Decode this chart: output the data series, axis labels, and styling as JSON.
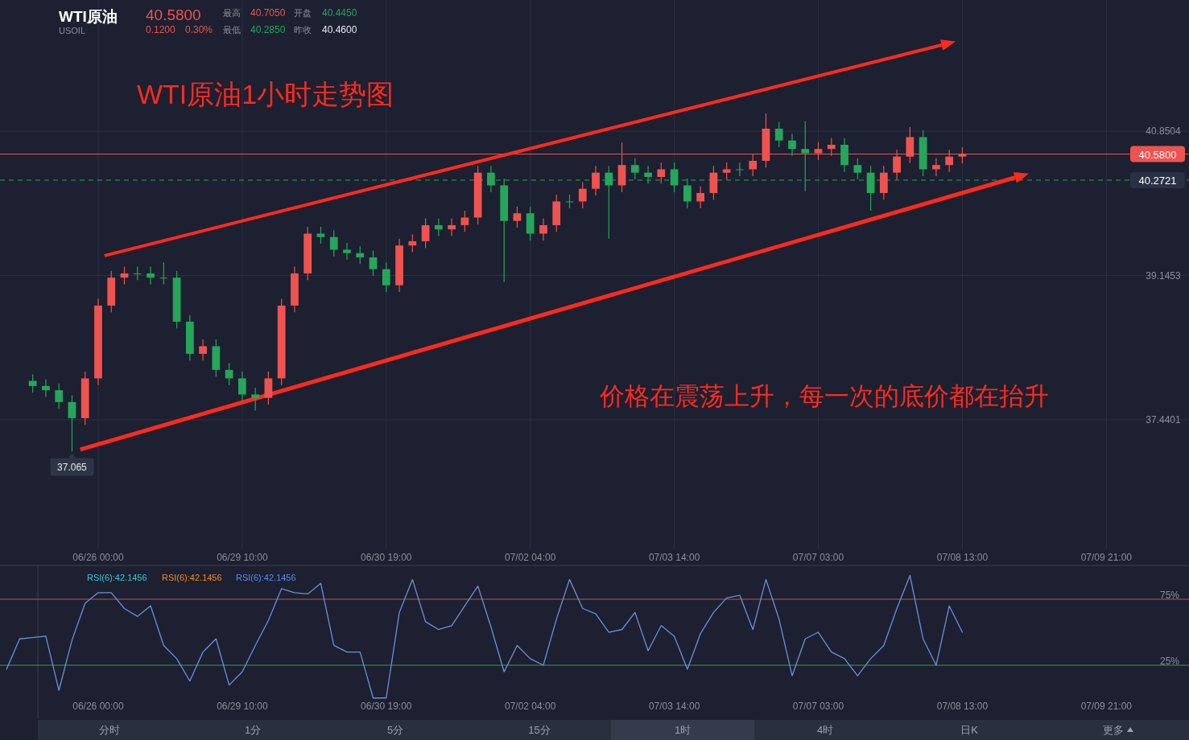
{
  "chart_data": [
    {
      "type": "candlestick",
      "title": "WTI原油",
      "subtitle": "USOIL",
      "categories": [
        null,
        null,
        null,
        null,
        null,
        null,
        null,
        "06/26 00:00",
        null,
        null,
        null,
        null,
        null,
        null,
        null,
        null,
        null,
        null,
        "06/29 10:00",
        null,
        null,
        null,
        null,
        null,
        null,
        null,
        null,
        null,
        null,
        "06/30 19:00",
        null,
        null,
        null,
        null,
        null,
        null,
        null,
        null,
        null,
        null,
        "07/02 04:00",
        null,
        null,
        null,
        null,
        null,
        null,
        null,
        null,
        null,
        null,
        "07/03 14:00",
        null,
        null,
        null,
        null,
        null,
        null,
        null,
        null,
        null,
        null,
        "07/07 03:00",
        null,
        null,
        null,
        null,
        null,
        null,
        null,
        null,
        null,
        null,
        "07/08 13:00",
        null,
        null,
        null,
        null,
        null,
        null,
        null,
        null,
        null,
        null,
        "07/09 21:00",
        null,
        null
      ],
      "ohlc": [
        null,
        null,
        [
          37.9,
          37.98,
          37.76,
          37.84
        ],
        [
          37.84,
          37.92,
          37.71,
          37.79
        ],
        [
          37.79,
          37.87,
          37.57,
          37.65
        ],
        [
          37.65,
          37.73,
          37.065,
          37.46
        ],
        [
          37.46,
          38.01,
          37.38,
          37.93
        ],
        [
          37.93,
          38.87,
          37.85,
          38.79
        ],
        [
          38.79,
          39.2,
          38.71,
          39.12
        ],
        [
          39.12,
          39.25,
          39.04,
          39.17
        ],
        [
          39.17,
          39.25,
          39.09,
          39.17
        ],
        [
          39.17,
          39.25,
          39.04,
          39.12
        ],
        [
          39.12,
          39.3,
          39.04,
          39.12
        ],
        [
          39.12,
          39.2,
          38.52,
          38.6
        ],
        [
          38.6,
          38.68,
          38.14,
          38.22
        ],
        [
          38.22,
          38.39,
          38.14,
          38.31
        ],
        [
          38.31,
          38.39,
          37.95,
          38.03
        ],
        [
          38.03,
          38.11,
          37.85,
          37.93
        ],
        [
          37.93,
          38.01,
          37.66,
          37.74
        ],
        [
          37.74,
          37.82,
          37.55,
          37.7
        ],
        [
          37.7,
          38.01,
          37.62,
          37.93
        ],
        [
          37.93,
          38.87,
          37.85,
          38.79
        ],
        [
          38.79,
          39.25,
          38.71,
          39.17
        ],
        [
          39.17,
          39.72,
          39.09,
          39.64
        ],
        [
          39.64,
          39.72,
          39.52,
          39.6
        ],
        [
          39.6,
          39.68,
          39.37,
          39.45
        ],
        [
          39.45,
          39.53,
          39.33,
          39.41
        ],
        [
          39.41,
          39.49,
          39.28,
          39.36
        ],
        [
          39.36,
          39.44,
          39.14,
          39.22
        ],
        [
          39.22,
          39.3,
          38.95,
          39.03
        ],
        [
          39.03,
          39.58,
          38.95,
          39.5
        ],
        [
          39.5,
          39.63,
          39.42,
          39.55
        ],
        [
          39.55,
          39.82,
          39.47,
          39.74
        ],
        [
          39.74,
          39.82,
          39.61,
          39.69
        ],
        [
          39.69,
          39.82,
          39.61,
          39.74
        ],
        [
          39.74,
          39.91,
          39.66,
          39.83
        ],
        [
          39.83,
          40.44,
          39.75,
          40.36
        ],
        [
          40.36,
          40.44,
          40.13,
          40.21
        ],
        [
          40.21,
          40.29,
          39.07,
          39.79
        ],
        [
          39.79,
          39.96,
          39.71,
          39.88
        ],
        [
          39.88,
          39.96,
          39.56,
          39.64
        ],
        [
          39.64,
          39.82,
          39.56,
          39.74
        ],
        [
          39.74,
          40.1,
          39.66,
          40.02
        ],
        [
          40.02,
          40.1,
          39.94,
          40.02
        ],
        [
          40.02,
          40.25,
          39.94,
          40.17
        ],
        [
          40.17,
          40.44,
          40.09,
          40.36
        ],
        [
          40.36,
          40.44,
          39.58,
          40.21
        ],
        [
          40.21,
          40.72,
          40.13,
          40.45
        ],
        [
          40.45,
          40.53,
          40.28,
          40.36
        ],
        [
          40.36,
          40.44,
          40.23,
          40.31
        ],
        [
          40.31,
          40.48,
          40.23,
          40.4
        ],
        [
          40.4,
          40.48,
          40.13,
          40.21
        ],
        [
          40.21,
          40.29,
          39.94,
          40.02
        ],
        [
          40.02,
          40.2,
          39.94,
          40.12
        ],
        [
          40.12,
          40.44,
          40.04,
          40.36
        ],
        [
          40.36,
          40.48,
          40.28,
          40.4
        ],
        [
          40.4,
          40.48,
          40.32,
          40.4
        ],
        [
          40.4,
          40.58,
          40.32,
          40.5
        ],
        [
          40.5,
          41.06,
          40.42,
          40.88
        ],
        [
          40.88,
          40.96,
          40.66,
          40.74
        ],
        [
          40.74,
          40.82,
          40.56,
          40.64
        ],
        [
          40.64,
          40.97,
          40.14,
          40.59
        ],
        [
          40.59,
          40.72,
          40.51,
          40.64
        ],
        [
          40.64,
          40.77,
          40.56,
          40.69
        ],
        [
          40.69,
          40.77,
          40.37,
          40.45
        ],
        [
          40.45,
          40.53,
          40.28,
          40.36
        ],
        [
          40.36,
          40.44,
          39.91,
          40.12
        ],
        [
          40.12,
          40.44,
          40.04,
          40.36
        ],
        [
          40.36,
          40.63,
          40.28,
          40.55
        ],
        [
          40.55,
          40.9,
          40.47,
          40.78
        ],
        [
          40.78,
          40.86,
          40.32,
          40.4
        ],
        [
          40.4,
          40.53,
          40.32,
          40.45
        ],
        [
          40.45,
          40.63,
          40.37,
          40.55
        ],
        [
          40.55,
          40.66,
          40.47,
          40.58
        ],
        null,
        null,
        null,
        null,
        null,
        null,
        null,
        null,
        null,
        null,
        null,
        null,
        null
      ],
      "colors": [
        null,
        null,
        "#26a65b",
        "#26a65b",
        "#26a65b",
        "#26a65b",
        "#ef5350",
        "#ef5350",
        "#ef5350",
        "#ef5350",
        "#26a65b",
        "#26a65b",
        "#26a65b",
        "#26a65b",
        "#26a65b",
        "#ef5350",
        "#26a65b",
        "#26a65b",
        "#26a65b",
        "#26a65b",
        "#ef5350",
        "#ef5350",
        "#ef5350",
        "#ef5350",
        "#26a65b",
        "#26a65b",
        "#26a65b",
        "#26a65b",
        "#26a65b",
        "#26a65b",
        "#ef5350",
        "#ef5350",
        "#ef5350",
        "#26a65b",
        "#ef5350",
        "#ef5350",
        "#ef5350",
        "#26a65b",
        "#26a65b",
        "#ef5350",
        "#26a65b",
        "#ef5350",
        "#ef5350",
        "#26a65b",
        "#ef5350",
        "#ef5350",
        "#26a65b",
        "#ef5350",
        "#26a65b",
        "#26a65b",
        "#ef5350",
        "#26a65b",
        "#26a65b",
        "#ef5350",
        "#ef5350",
        "#ef5350",
        "#26a65b",
        "#ef5350",
        "#ef5350",
        "#26a65b",
        "#26a65b",
        "#26a65b",
        "#ef5350",
        "#ef5350",
        "#26a65b",
        "#26a65b",
        "#26a65b",
        "#ef5350",
        "#ef5350",
        "#ef5350",
        "#26a65b",
        "#ef5350",
        "#ef5350",
        "#ef5350",
        null,
        null,
        null,
        null,
        null,
        null,
        null,
        null,
        null,
        null,
        null,
        null,
        null
      ],
      "ylim": [
        35.91,
        42.4
      ],
      "yticks": [
        37.4401,
        39.1453,
        40.8504
      ],
      "grid": true,
      "ref_lines": [
        {
          "axis": "y",
          "value": 40.58,
          "label": "40.5800",
          "color": "#ef5350",
          "line_style": "solid"
        },
        {
          "axis": "y",
          "value": 40.2721,
          "label": "40.2721",
          "color": "#26a65b",
          "line_style": "dashed"
        }
      ],
      "annotations": [
        "40.5800",
        "0.1200",
        "0.30%",
        "最高",
        "40.7050",
        "开盘",
        "40.4450",
        "最低",
        "40.2850",
        "昨收",
        "40.4600",
        "WTI原油1小时走势图",
        "价格在震荡上升，每一次的底价都在抬升",
        {
          "text": "37.065",
          "y": 37.065
        }
      ]
    },
    {
      "type": "line",
      "color": "#6f8fd8",
      "categories": [
        null,
        null,
        null,
        null,
        null,
        null,
        null,
        "06/26 00:00",
        null,
        null,
        null,
        null,
        null,
        null,
        null,
        null,
        null,
        null,
        "06/29 10:00",
        null,
        null,
        null,
        null,
        null,
        null,
        null,
        null,
        null,
        null,
        "06/30 19:00",
        null,
        null,
        null,
        null,
        null,
        null,
        null,
        null,
        null,
        null,
        "07/02 04:00",
        null,
        null,
        null,
        null,
        null,
        null,
        null,
        null,
        null,
        null,
        "07/03 14:00",
        null,
        null,
        null,
        null,
        null,
        null,
        null,
        null,
        null,
        null,
        "07/07 03:00",
        null,
        null,
        null,
        null,
        null,
        null,
        null,
        null,
        null,
        null,
        "07/08 13:00",
        null,
        null,
        null,
        null,
        null,
        null,
        null,
        null,
        null,
        null,
        "07/09 21:00",
        null,
        null
      ],
      "values": [
        22,
        45,
        46,
        47,
        6,
        44,
        72,
        80,
        80,
        68,
        62,
        70,
        40,
        30,
        13,
        35,
        45,
        10,
        20,
        40,
        59,
        83,
        80,
        79,
        87,
        40,
        35,
        35,
        0.2,
        0.2,
        65,
        90,
        58,
        52,
        55,
        70,
        85,
        54,
        20,
        40,
        30,
        25,
        60,
        90,
        68,
        64,
        50,
        52,
        65,
        36,
        55,
        47,
        22,
        49,
        65,
        76,
        78,
        52,
        90,
        60,
        17,
        45,
        50,
        35,
        30,
        17,
        30,
        40,
        68,
        93,
        45,
        25,
        70,
        50,
        null,
        null,
        null,
        null,
        null,
        null,
        null,
        null,
        null,
        null,
        null,
        null,
        null
      ],
      "ylim": [
        -15.2,
        100.6
      ],
      "yticks": [
        {
          "value": 75,
          "label": "75%"
        },
        {
          "value": 25,
          "label": "25%"
        }
      ],
      "ref_lines": [
        {
          "axis": "y",
          "value": 75,
          "color": "#c0505a"
        },
        {
          "axis": "y",
          "value": 25,
          "color": "#3e9a50"
        }
      ],
      "annotations": [
        "RSI(6):42.1456",
        "RSI(6):42.1456",
        "RSI(6):42.1456",
        "分时",
        "1分",
        "5分",
        "15分",
        "1时",
        "4时",
        "日K",
        "更多"
      ]
    }
  ]
}
